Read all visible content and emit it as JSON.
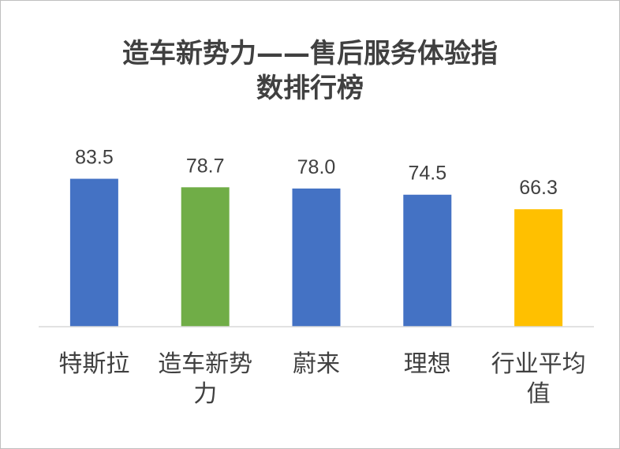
{
  "chart_data": {
    "type": "bar",
    "title_lines": [
      "造车新势力——售后服务体验指",
      "数排行榜"
    ],
    "categories": [
      [
        "特斯拉"
      ],
      [
        "造车新势",
        "力"
      ],
      [
        "蔚来"
      ],
      [
        "理想"
      ],
      [
        "行业平均",
        "值"
      ]
    ],
    "values": [
      83.5,
      78.7,
      78.0,
      74.5,
      66.3
    ],
    "value_labels": [
      "83.5",
      "78.7",
      "78.0",
      "74.5",
      "66.3"
    ],
    "colors": [
      "#4472C4",
      "#70AD47",
      "#4472C4",
      "#4472C4",
      "#FFC000"
    ],
    "ylim": [
      0,
      100
    ],
    "grid": false,
    "legend": "none"
  }
}
